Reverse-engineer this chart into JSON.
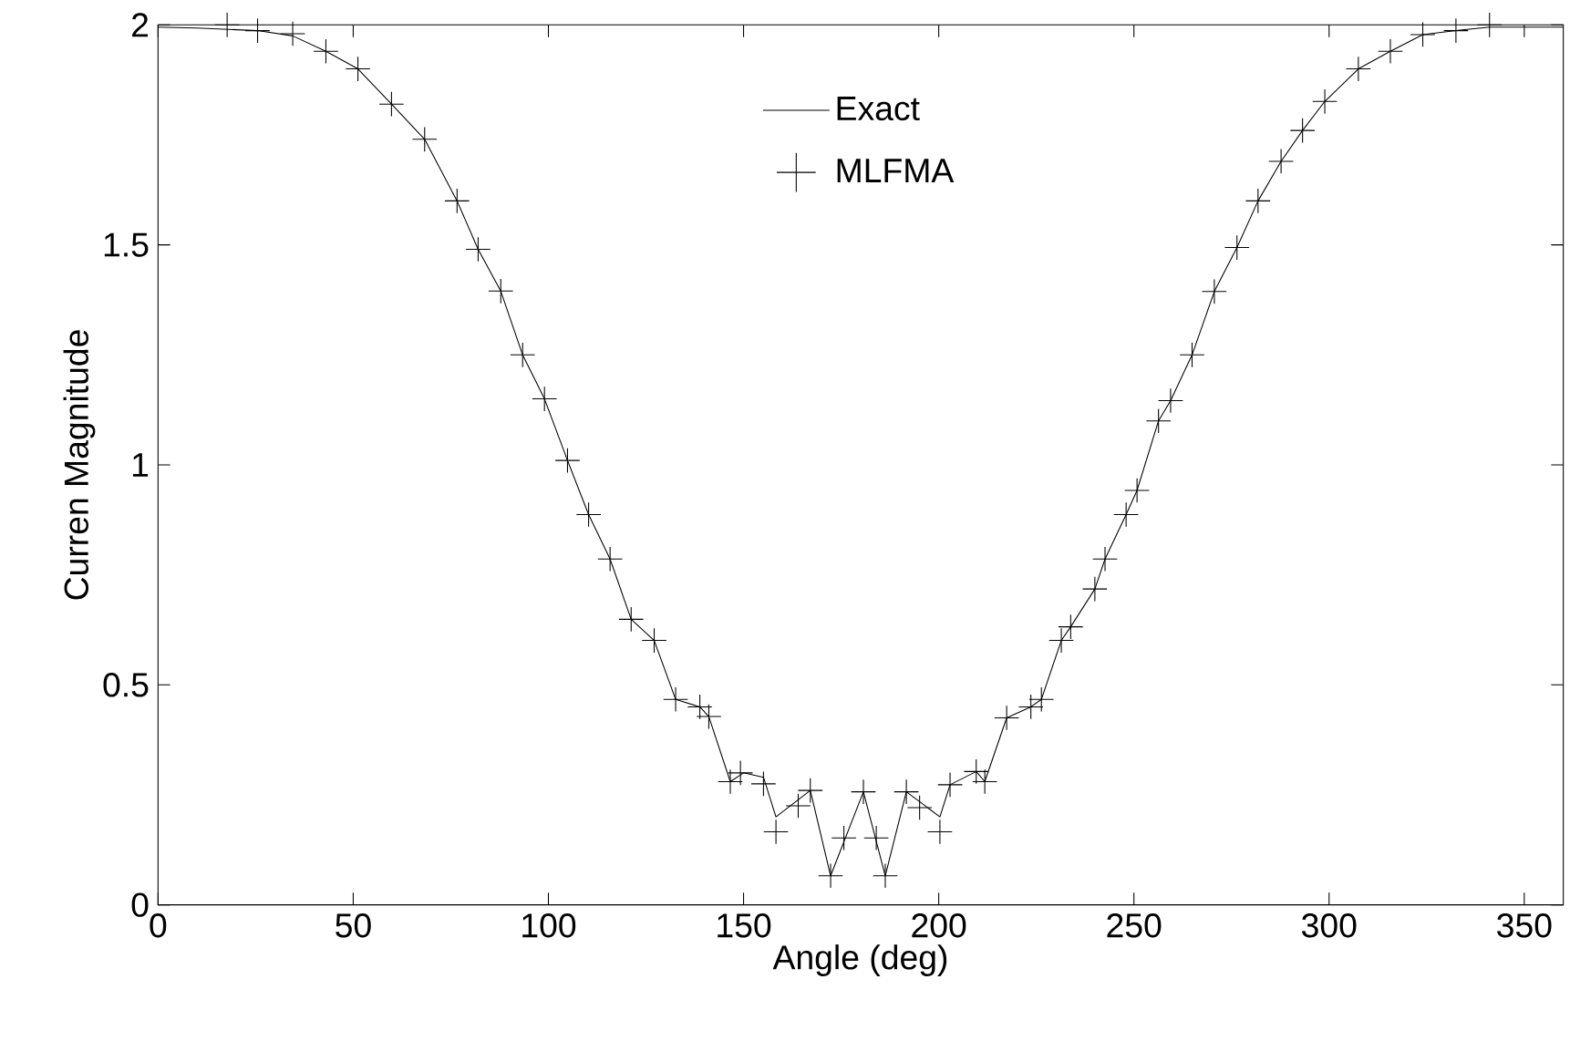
{
  "chart_data": {
    "type": "line",
    "xlabel": "Angle (deg)",
    "ylabel": "Curren Magnitude",
    "xlim": [
      0,
      360
    ],
    "ylim": [
      0,
      2
    ],
    "xticks": [
      0,
      50,
      100,
      150,
      200,
      250,
      300,
      350
    ],
    "yticks": [
      0,
      0.5,
      1,
      1.5,
      2
    ],
    "grid": false,
    "legend": "top",
    "series": [
      {
        "name": "Exact",
        "color": "#000000",
        "marker": "none",
        "line_style": "solid",
        "x": [
          0,
          10,
          25.5,
          34.5,
          43,
          51.2,
          59.8,
          68.3,
          76.6,
          82,
          87.8,
          93.4,
          99,
          104.9,
          110.3,
          115.8,
          121.2,
          127.1,
          132.6,
          138.8,
          141.1,
          146.6,
          150,
          155.1,
          158.3,
          167.1,
          172.3,
          180.7,
          186.3,
          191.7,
          200.3,
          202.9,
          209.6,
          211.8,
          217.4,
          223.6,
          226.3,
          231.4,
          233.8,
          240,
          242.6,
          248,
          250.8,
          256.3,
          259.4,
          264.9,
          270.6,
          276.4,
          281.8,
          287.7,
          293.2,
          298.9,
          307.5,
          315.7,
          324,
          332.5,
          341.1,
          360
        ],
        "values": [
          1.995,
          1.993,
          1.987,
          1.975,
          1.94,
          1.9,
          1.82,
          1.74,
          1.6,
          1.49,
          1.395,
          1.25,
          1.15,
          1.01,
          0.887,
          0.786,
          0.649,
          0.601,
          0.467,
          0.45,
          0.428,
          0.28,
          0.3,
          0.29,
          0.2,
          0.26,
          0.066,
          0.257,
          0.066,
          0.257,
          0.2,
          0.273,
          0.303,
          0.28,
          0.425,
          0.45,
          0.467,
          0.601,
          0.632,
          0.718,
          0.786,
          0.887,
          0.942,
          1.1,
          1.146,
          1.25,
          1.394,
          1.494,
          1.6,
          1.69,
          1.76,
          1.826,
          1.9,
          1.94,
          1.978,
          1.987,
          1.995,
          1.995
        ]
      },
      {
        "name": "MLFMA",
        "type": "scatter",
        "color": "#000000",
        "marker": "cross",
        "x": [
          17.7,
          25.5,
          34.5,
          43,
          51.2,
          59.8,
          68.3,
          76.6,
          82,
          87.8,
          93.4,
          99,
          104.9,
          110.3,
          115.8,
          121.2,
          127.1,
          132.6,
          138.8,
          141.1,
          146.6,
          149.2,
          155.1,
          158.3,
          164,
          167.1,
          172.3,
          175.7,
          180.7,
          184,
          186.3,
          191.7,
          195.1,
          200.3,
          202.9,
          209.6,
          211.8,
          217.4,
          223.6,
          226.3,
          231.4,
          233.8,
          240,
          242.6,
          248,
          250.8,
          256.3,
          259.4,
          264.9,
          270.6,
          276.4,
          281.8,
          287.7,
          293.2,
          298.9,
          307.5,
          315.7,
          324,
          332.5,
          341.1
        ],
        "values": [
          2.0,
          1.987,
          1.98,
          1.94,
          1.9,
          1.82,
          1.74,
          1.6,
          1.49,
          1.395,
          1.25,
          1.15,
          1.01,
          0.887,
          0.786,
          0.649,
          0.601,
          0.467,
          0.45,
          0.428,
          0.28,
          0.3,
          0.275,
          0.166,
          0.225,
          0.26,
          0.066,
          0.152,
          0.257,
          0.152,
          0.066,
          0.257,
          0.221,
          0.166,
          0.273,
          0.303,
          0.28,
          0.425,
          0.45,
          0.467,
          0.601,
          0.632,
          0.718,
          0.786,
          0.887,
          0.942,
          1.1,
          1.146,
          1.25,
          1.394,
          1.494,
          1.6,
          1.69,
          1.76,
          1.826,
          1.9,
          1.94,
          1.978,
          1.987,
          2.0
        ]
      }
    ]
  }
}
